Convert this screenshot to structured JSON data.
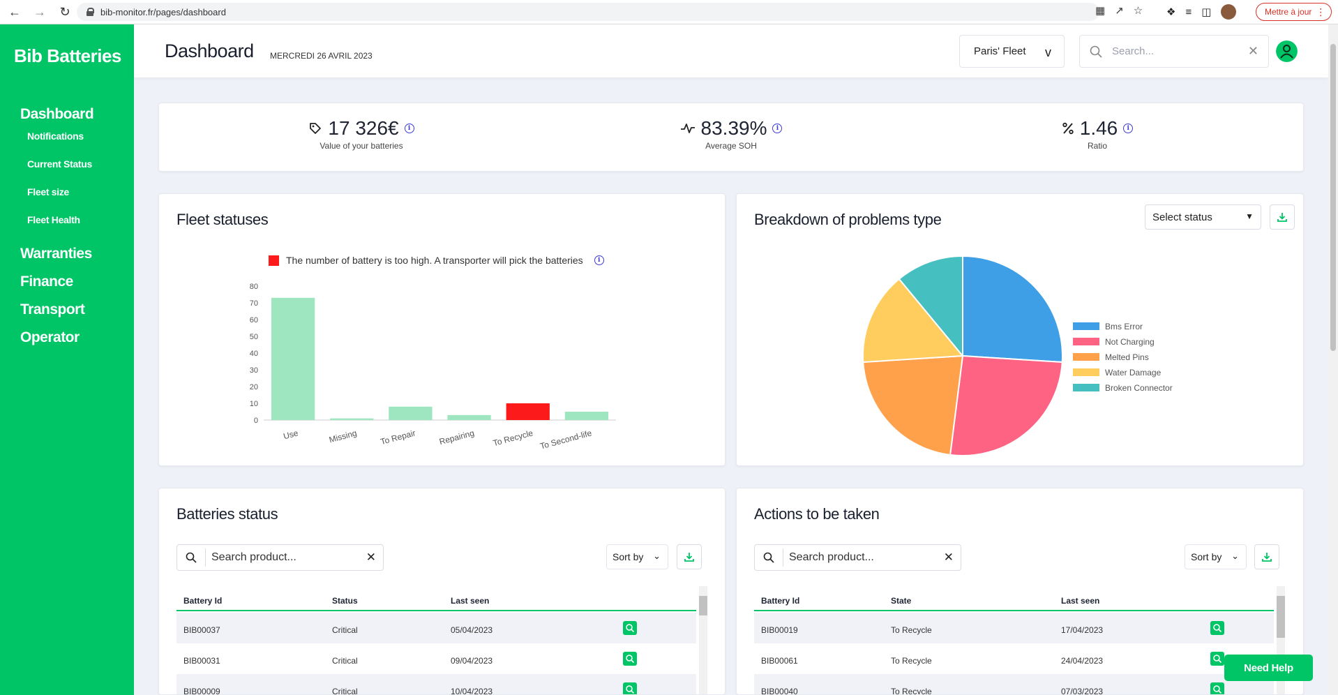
{
  "browser": {
    "url": "bib-monitor.fr/pages/dashboard",
    "update_label": "Mettre à jour"
  },
  "sidebar": {
    "brand": "Bib Batteries",
    "items": [
      {
        "label": "Dashboard",
        "sub": [
          "Notifications",
          "Current Status",
          "Fleet size",
          "Fleet Health"
        ]
      },
      {
        "label": "Warranties"
      },
      {
        "label": "Finance"
      },
      {
        "label": "Transport"
      },
      {
        "label": "Operator"
      }
    ]
  },
  "header": {
    "title": "Dashboard",
    "date": "MERCREDI 26 AVRIL 2023",
    "fleet": "Paris' Fleet",
    "fleet_chevron": "v",
    "search_placeholder": "Search..."
  },
  "kpis": [
    {
      "value": "17 326€",
      "label": "Value of your batteries",
      "icon": "tag-icon"
    },
    {
      "value": "83.39%",
      "label": "Average SOH",
      "icon": "pulse-icon"
    },
    {
      "value": "1.46",
      "label": "Ratio",
      "icon": "percent-icon"
    }
  ],
  "fleet_statuses": {
    "title": "Fleet statuses",
    "legend": "The number of battery is too high. A transporter will pick the batteries",
    "colors": {
      "normal": "#9ee6c0",
      "alert": "#fc1a1a"
    }
  },
  "problems": {
    "title": "Breakdown of problems type",
    "select_label": "Select status"
  },
  "chart_data": [
    {
      "type": "bar",
      "categories": [
        "Use",
        "Missing",
        "To Repair",
        "Repairing",
        "To Recycle",
        "To Second-life"
      ],
      "values": [
        73,
        1,
        8,
        3,
        10,
        5
      ],
      "alert": [
        false,
        false,
        false,
        false,
        true,
        false
      ],
      "yticks": [
        0,
        10,
        20,
        30,
        40,
        50,
        60,
        70,
        80
      ],
      "ylim": [
        0,
        80
      ]
    },
    {
      "type": "pie",
      "labels": [
        "Bms Error",
        "Not Charging",
        "Melted Pins",
        "Water Damage",
        "Broken Connector"
      ],
      "values": [
        26,
        26,
        22,
        15,
        11
      ],
      "colors": [
        "#3f9fe6",
        "#ff6384",
        "#ffa04a",
        "#ffcd5e",
        "#45bfc0"
      ],
      "legend": "right"
    }
  ],
  "batteries_status": {
    "title": "Batteries status",
    "search_placeholder": "Search product...",
    "sort_label": "Sort by",
    "columns": [
      "Battery Id",
      "Status",
      "Last seen"
    ],
    "rows": [
      [
        "BIB00037",
        "Critical",
        "05/04/2023"
      ],
      [
        "BIB00031",
        "Critical",
        "09/04/2023"
      ],
      [
        "BIB00009",
        "Critical",
        "10/04/2023"
      ]
    ]
  },
  "actions": {
    "title": "Actions to be taken",
    "search_placeholder": "Search product...",
    "sort_label": "Sort by",
    "columns": [
      "Battery Id",
      "State",
      "Last seen"
    ],
    "rows": [
      [
        "BIB00019",
        "To Recycle",
        "17/04/2023"
      ],
      [
        "BIB00061",
        "To Recycle",
        "24/04/2023"
      ],
      [
        "BIB00040",
        "To Recycle",
        "07/03/2023"
      ]
    ]
  },
  "help_label": "Need Help"
}
